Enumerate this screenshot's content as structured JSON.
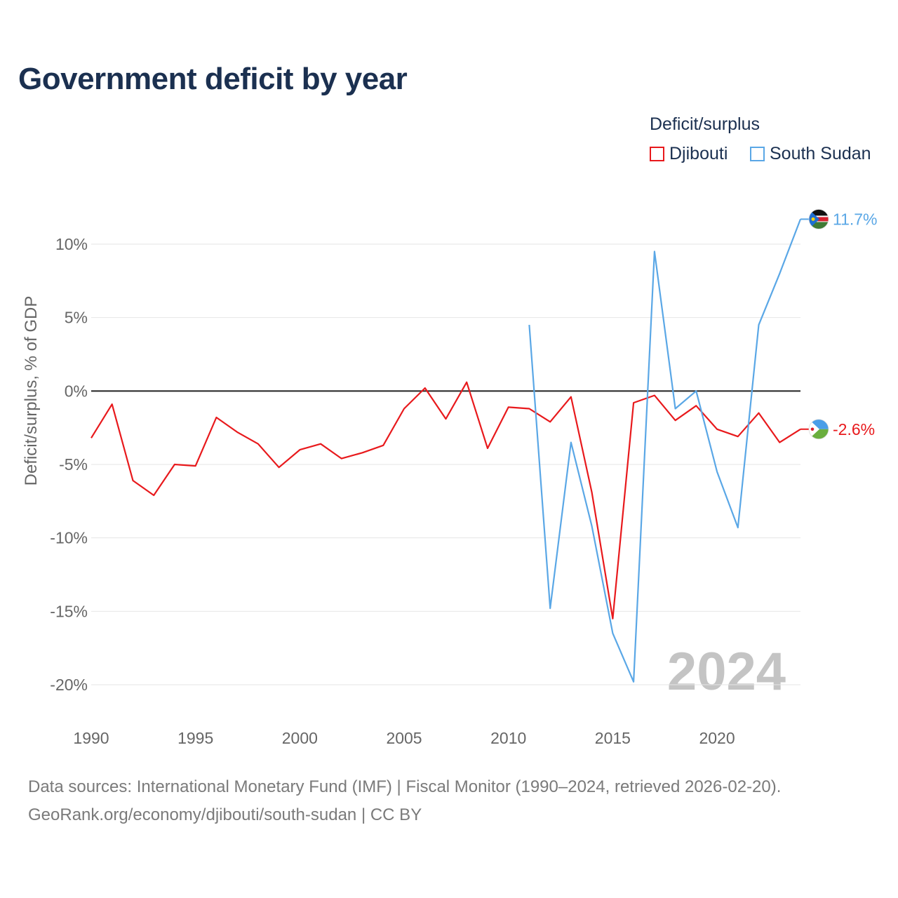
{
  "header": {
    "title": "Government deficit by year"
  },
  "legend": {
    "title": "Deficit/surplus",
    "items": [
      {
        "label": "Djibouti",
        "color": "#e8191c"
      },
      {
        "label": "South Sudan",
        "color": "#5aa7e6"
      }
    ]
  },
  "year_watermark": "2024",
  "chart_data": {
    "type": "line",
    "title": "Government deficit by year",
    "xlabel": "",
    "ylabel": "Deficit/surplus, % of GDP",
    "xlim": [
      1990,
      2024
    ],
    "ylim": [
      -20,
      10
    ],
    "xticks": [
      1990,
      1995,
      2000,
      2005,
      2010,
      2015,
      2020
    ],
    "xtick_labels": [
      "1990",
      "1995",
      "2000",
      "2005",
      "2010",
      "2015",
      "2020"
    ],
    "yticks": [
      10,
      5,
      0,
      -5,
      -10,
      -15,
      -20
    ],
    "ytick_labels": [
      "10%",
      "5%",
      "0%",
      "-5%",
      "-10%",
      "-15%",
      "-20%"
    ],
    "grid": true,
    "series": [
      {
        "name": "Djibouti",
        "color": "#e8191c",
        "end_label": "-2.6%",
        "flag_icon": "djibouti-flag-icon",
        "x": [
          1990,
          1991,
          1992,
          1993,
          1994,
          1995,
          1996,
          1997,
          1998,
          1999,
          2000,
          2001,
          2002,
          2003,
          2004,
          2005,
          2006,
          2007,
          2008,
          2009,
          2010,
          2011,
          2012,
          2013,
          2014,
          2015,
          2016,
          2017,
          2018,
          2019,
          2020,
          2021,
          2022,
          2023,
          2024
        ],
        "values": [
          -3.2,
          -0.9,
          -6.1,
          -7.1,
          -5.0,
          -5.1,
          -1.8,
          -2.8,
          -3.6,
          -5.2,
          -4.0,
          -3.6,
          -4.6,
          -4.2,
          -3.7,
          -1.2,
          0.2,
          -1.9,
          0.6,
          -3.9,
          -1.1,
          -1.2,
          -2.1,
          -0.4,
          -6.9,
          -15.5,
          -0.8,
          -0.3,
          -2.0,
          -1.0,
          -2.6,
          -3.1,
          -1.5,
          -3.5,
          -2.6
        ]
      },
      {
        "name": "South Sudan",
        "color": "#5aa7e6",
        "end_label": "11.7%",
        "flag_icon": "south-sudan-flag-icon",
        "x": [
          2011,
          2012,
          2013,
          2014,
          2015,
          2016,
          2017,
          2018,
          2019,
          2020,
          2021,
          2022,
          2023,
          2024
        ],
        "values": [
          4.5,
          -14.8,
          -3.5,
          -9.2,
          -16.5,
          -19.8,
          9.5,
          -1.2,
          0.0,
          -5.5,
          -9.3,
          4.5,
          8.0,
          11.7
        ]
      }
    ]
  },
  "footer": {
    "source_line": "Data sources: International Monetary Fund (IMF) | Fiscal Monitor (1990–2024, retrieved 2026-02-20).",
    "attribution_line": "GeoRank.org/economy/djibouti/south-sudan | CC BY"
  }
}
